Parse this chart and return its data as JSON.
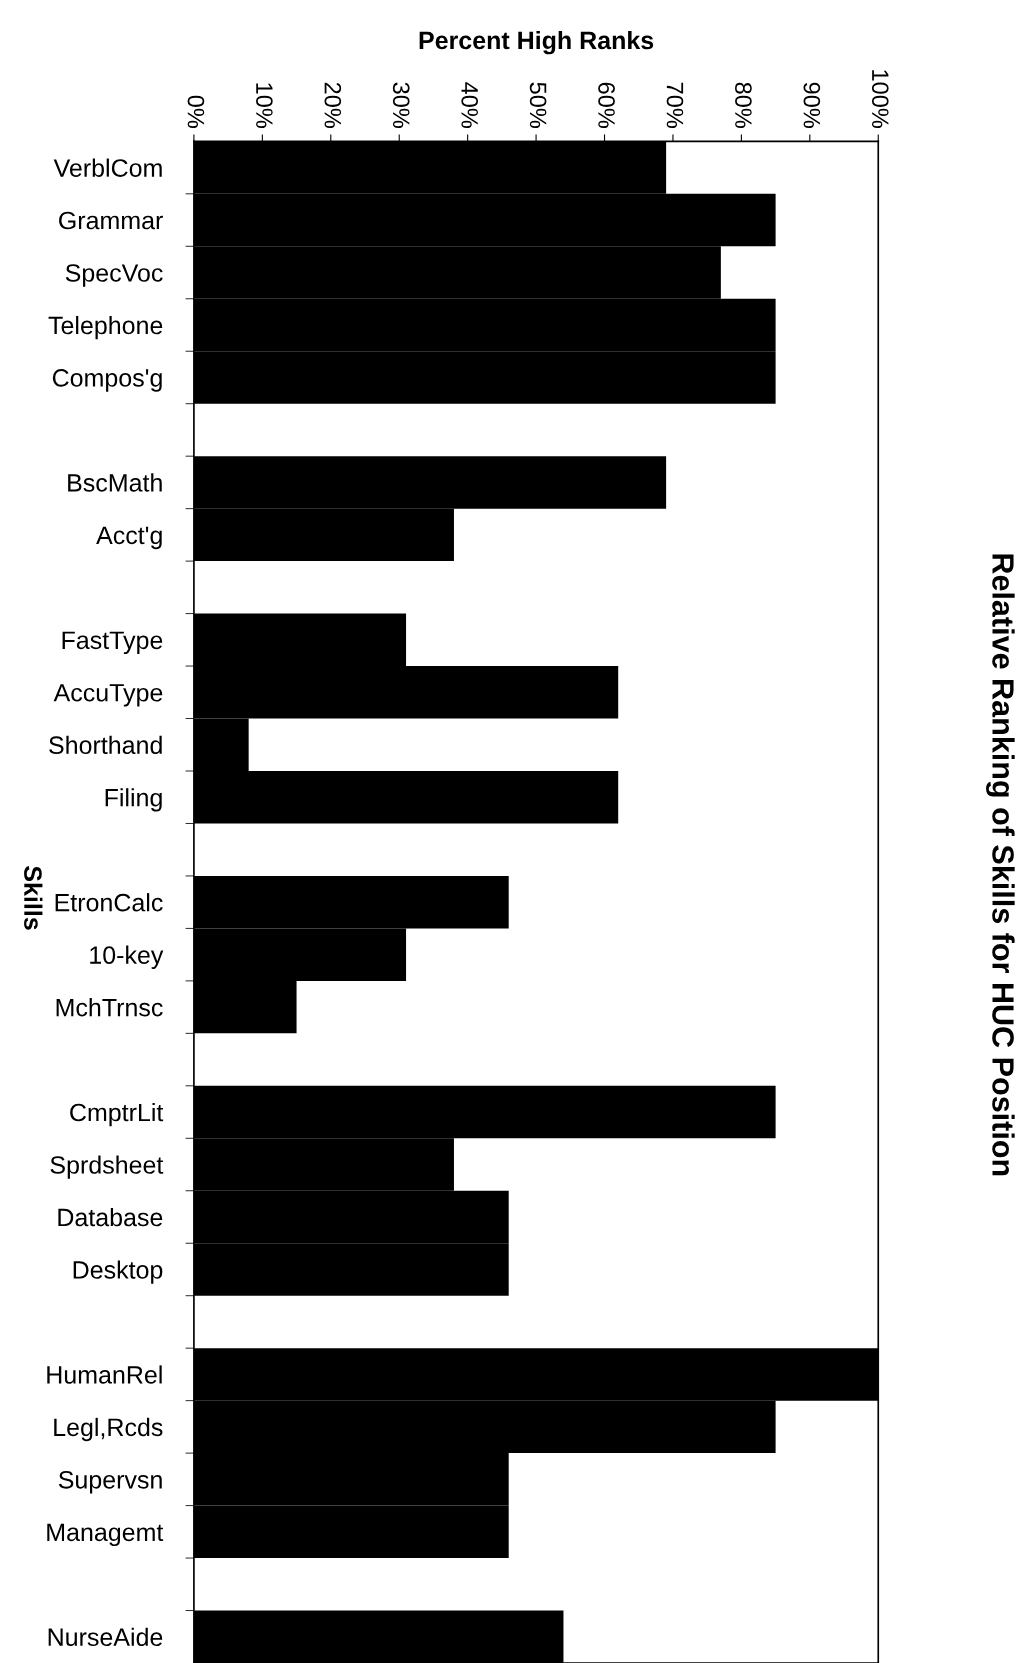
{
  "chart_data": {
    "type": "bar",
    "orientation": "horizontal",
    "title": "Relative Ranking of Skills for HUC Position",
    "xlabel": "Percent High Ranks",
    "ylabel": "Skills",
    "categories": [
      "VerblCom",
      "Grammar",
      "SpecVoc",
      "Telephone",
      "Compos'g",
      null,
      "BscMath",
      "Acct'g",
      null,
      "FastType",
      "AccuType",
      "Shorthand",
      "Filing",
      null,
      "EtronCalc",
      "10-key",
      "MchTrnsc",
      null,
      "CmptrLit",
      "Sprdsheet",
      "Database",
      "Desktop",
      null,
      "HumanRel",
      "Legl,Rcds",
      "Supervsn",
      "Managemt",
      null,
      "NurseAide"
    ],
    "values": [
      69,
      85,
      77,
      85,
      85,
      null,
      69,
      38,
      null,
      31,
      62,
      8,
      62,
      null,
      46,
      31,
      15,
      null,
      85,
      38,
      46,
      46,
      null,
      100,
      85,
      46,
      46,
      null,
      54
    ],
    "color": "#000000",
    "xlim": [
      0,
      100
    ],
    "xticks": [
      {
        "value": 0,
        "label": "0%"
      },
      {
        "value": 10,
        "label": "10%"
      },
      {
        "value": 20,
        "label": "20%"
      },
      {
        "value": 30,
        "label": "30%"
      },
      {
        "value": 40,
        "label": "40%"
      },
      {
        "value": 50,
        "label": "50%"
      },
      {
        "value": 60,
        "label": "60%"
      },
      {
        "value": 70,
        "label": "70%"
      },
      {
        "value": 80,
        "label": "80%"
      },
      {
        "value": 90,
        "label": "90%"
      },
      {
        "value": 100,
        "label": "100%"
      }
    ],
    "grid": false,
    "legend": false
  }
}
